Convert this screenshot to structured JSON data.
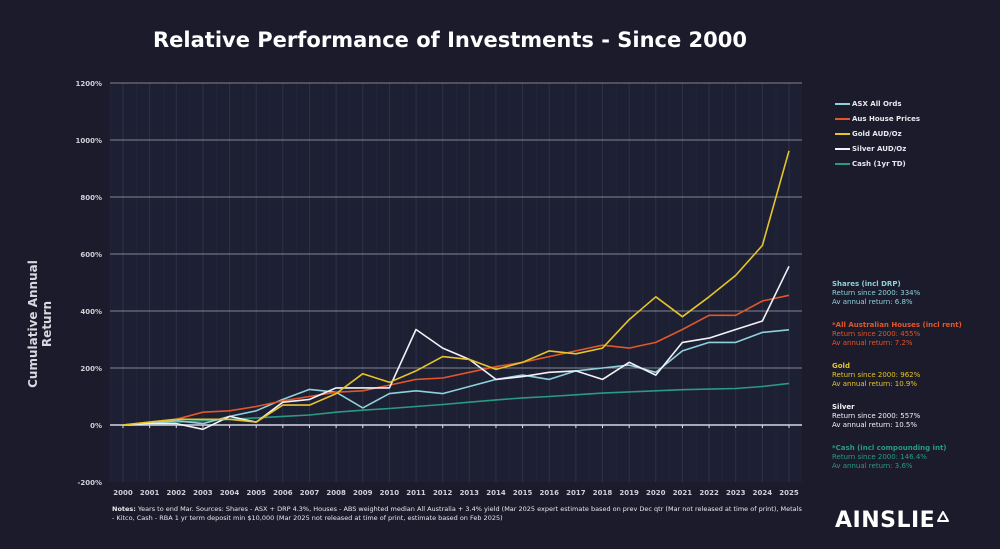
{
  "chart_data": {
    "type": "line",
    "title": "Relative Performance of Investments - Since 2000",
    "ylabel": "Cumulative Annual Return",
    "xlabel": "",
    "ylim": [
      -200,
      1200
    ],
    "yticks": [
      "-200%",
      "0%",
      "200%",
      "400%",
      "600%",
      "800%",
      "1000%",
      "1200%"
    ],
    "ytick_values": [
      -200,
      0,
      200,
      400,
      600,
      800,
      1000,
      1200
    ],
    "grid": true,
    "legend_position": "top-right",
    "categories": [
      "2000",
      "2001",
      "2002",
      "2003",
      "2004",
      "2005",
      "2006",
      "2007",
      "2008",
      "2009",
      "2010",
      "2011",
      "2012",
      "2013",
      "2014",
      "2015",
      "2016",
      "2017",
      "2018",
      "2019",
      "2020",
      "2021",
      "2022",
      "2023",
      "2024",
      "2025"
    ],
    "series": [
      {
        "name": "ASX All Ords",
        "color": "#8fd0dc",
        "values": [
          0,
          5,
          15,
          5,
          30,
          50,
          90,
          125,
          115,
          60,
          110,
          120,
          110,
          135,
          160,
          175,
          160,
          190,
          200,
          210,
          185,
          260,
          290,
          290,
          325,
          334
        ]
      },
      {
        "name": "Aus House Prices",
        "color": "#e0572a",
        "values": [
          0,
          10,
          20,
          45,
          50,
          65,
          85,
          100,
          115,
          120,
          140,
          160,
          165,
          185,
          205,
          220,
          240,
          260,
          280,
          270,
          290,
          335,
          385,
          385,
          435,
          455
        ]
      },
      {
        "name": "Gold AUD/Oz",
        "color": "#e6c52a",
        "values": [
          0,
          10,
          20,
          20,
          20,
          10,
          70,
          70,
          110,
          180,
          150,
          190,
          240,
          230,
          195,
          220,
          260,
          250,
          270,
          370,
          450,
          380,
          450,
          525,
          630,
          962
        ]
      },
      {
        "name": "Silver AUD/Oz",
        "color": "#f2f2f7",
        "values": [
          0,
          5,
          5,
          -15,
          30,
          10,
          80,
          90,
          130,
          130,
          130,
          335,
          270,
          230,
          160,
          170,
          185,
          190,
          160,
          220,
          175,
          290,
          305,
          335,
          365,
          557
        ]
      },
      {
        "name": "Cash (1yr TD)",
        "color": "#2a9a82",
        "values": [
          0,
          5,
          10,
          15,
          20,
          25,
          30,
          35,
          45,
          52,
          58,
          65,
          72,
          80,
          88,
          95,
          100,
          106,
          112,
          116,
          120,
          124,
          126,
          128,
          135,
          146
        ]
      }
    ]
  },
  "stats": [
    {
      "heading": "Shares (incl DRP)",
      "line1": "Return since 2000: 334%",
      "line2": "Av annual return: 6.8%",
      "color": "#8fd0dc"
    },
    {
      "heading": "*All Australian Houses (incl rent)",
      "line1": "Return since 2000: 455%",
      "line2": "Av annual return: 7.2%",
      "color": "#e0572a"
    },
    {
      "heading": "Gold",
      "line1": "Return since 2000: 962%",
      "line2": "Av annual return: 10.9%",
      "color": "#e6c52a"
    },
    {
      "heading": "Silver",
      "line1": "Return since 2000: 557%",
      "line2": "Av annual return: 10.5%",
      "color": "#f2f2f7"
    },
    {
      "heading": "*Cash (incl compounding int)",
      "line1": "Return since 2000: 146.4%",
      "line2": "Av annual return: 3.6%",
      "color": "#2a9a82"
    }
  ],
  "notes": {
    "label": "Notes:",
    "text": " Years to  end Mar.  Sources: Shares - ASX + DRP 4.3%, Houses - ABS weighted median All Australia + 3.4% yield (Mar 2025 expert estimate based on prev Dec qtr (Mar not released at time of print), Metals -  Kitco, Cash - RBA 1 yr term deposit min $10,000 (Mar 2025 not released at time of print, estimate based on Feb 2025)"
  },
  "logo": {
    "text": "AINSLIE"
  },
  "colors": {
    "background": "#1b1b2b",
    "grid": "#c8c8d2"
  }
}
